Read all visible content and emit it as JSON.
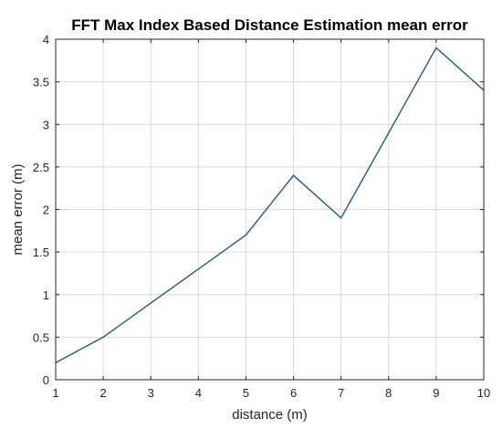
{
  "chart_data": {
    "type": "line",
    "title": "FFT Max Index Based Distance Estimation mean error",
    "xlabel": "distance (m)",
    "ylabel": "mean error (m)",
    "xlim": [
      1,
      10
    ],
    "ylim": [
      0,
      4
    ],
    "xticks": [
      1,
      2,
      3,
      4,
      5,
      6,
      7,
      8,
      9,
      10
    ],
    "yticks": [
      0,
      0.5,
      1,
      1.5,
      2,
      2.5,
      3,
      3.5,
      4
    ],
    "grid": true,
    "series": [
      {
        "x": [
          1,
          2,
          3,
          4,
          5,
          6,
          7,
          8,
          9,
          10
        ],
        "values": [
          0.2,
          0.5,
          0.9,
          1.3,
          1.7,
          2.4,
          1.9,
          2.9,
          3.9,
          3.4
        ],
        "color": "#1f5a80"
      }
    ]
  }
}
